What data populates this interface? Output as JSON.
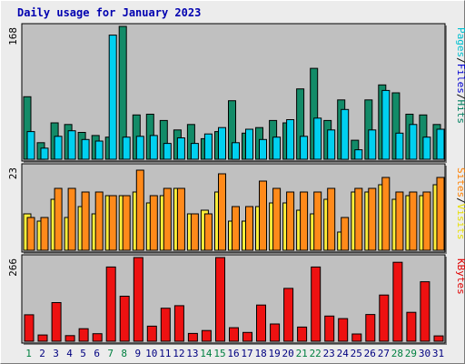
{
  "chart_data": {
    "type": "bar",
    "title": "Daily usage for January 2023",
    "categories": [
      "1",
      "2",
      "3",
      "4",
      "5",
      "6",
      "7",
      "8",
      "9",
      "10",
      "11",
      "12",
      "13",
      "14",
      "15",
      "16",
      "17",
      "18",
      "19",
      "20",
      "21",
      "22",
      "23",
      "24",
      "25",
      "26",
      "27",
      "28",
      "29",
      "30",
      "31"
    ],
    "weekend_days": [
      "1",
      "7",
      "8",
      "14",
      "15",
      "21",
      "22",
      "28",
      "29"
    ],
    "panels": [
      {
        "name": "hits-files-pages",
        "ymax_label": "168",
        "ymax": 168,
        "legend": [
          {
            "text": "Pages",
            "color": "#00c0d0"
          },
          {
            "text": "/",
            "color": "#000000"
          },
          {
            "text": "Files",
            "color": "#0000d0"
          },
          {
            "text": "/",
            "color": "#000000"
          },
          {
            "text": "Hits",
            "color": "#008060"
          }
        ],
        "series": [
          {
            "name": "Hits",
            "color": "#138b68",
            "values": [
              79,
              21,
              46,
              44,
              34,
              30,
              28,
              168,
              56,
              57,
              49,
              37,
              44,
              26,
              35,
              74,
              33,
              40,
              49,
              46,
              89,
              115,
              49,
              75,
              24,
              75,
              94,
              84,
              57,
              56,
              44
            ]
          },
          {
            "name": "Files",
            "color": "#00d0f0",
            "values": [
              35,
              14,
              29,
              36,
              25,
              23,
              157,
              28,
              29,
              30,
              20,
              27,
              20,
              32,
              40,
              21,
              38,
              25,
              28,
              50,
              29,
              52,
              37,
              63,
              12,
              37,
              87,
              33,
              44,
              28,
              38
            ]
          }
        ]
      },
      {
        "name": "visits-sites",
        "ymax_label": "23",
        "ymax": 23,
        "legend": [
          {
            "text": "Sites",
            "color": "#ff8000"
          },
          {
            "text": "/",
            "color": "#000000"
          },
          {
            "text": "Visits",
            "color": "#e8e000"
          }
        ],
        "series": [
          {
            "name": "Visits",
            "color": "#ffef3a",
            "values": [
              10,
              8,
              14,
              9,
              12,
              10,
              15,
              15,
              16,
              13,
              15,
              17,
              10,
              11,
              16,
              8,
              8,
              12,
              13,
              13,
              11,
              10,
              14,
              5,
              16,
              16,
              18,
              14,
              15,
              15,
              18
            ]
          },
          {
            "name": "Sites",
            "color": "#ff8a1a",
            "values": [
              9,
              9,
              17,
              17,
              16,
              16,
              15,
              15,
              22,
              15,
              17,
              17,
              10,
              10,
              21,
              12,
              12,
              19,
              17,
              16,
              16,
              16,
              17,
              9,
              17,
              17,
              20,
              16,
              16,
              16,
              20
            ]
          }
        ]
      },
      {
        "name": "kbytes",
        "ymax_label": "266",
        "ymax": 266,
        "legend": [
          {
            "text": "KBytes",
            "color": "#e00000"
          }
        ],
        "series": [
          {
            "name": "KBytes",
            "color": "#ee1111",
            "values": [
              84,
              20,
              123,
              18,
              40,
              24,
              236,
              143,
              266,
              48,
              105,
              113,
              25,
              34,
              266,
              43,
              28,
              115,
              55,
              168,
              45,
              236,
              80,
              72,
              23,
              85,
              147,
              251,
              92,
              189,
              17
            ]
          }
        ]
      }
    ]
  }
}
